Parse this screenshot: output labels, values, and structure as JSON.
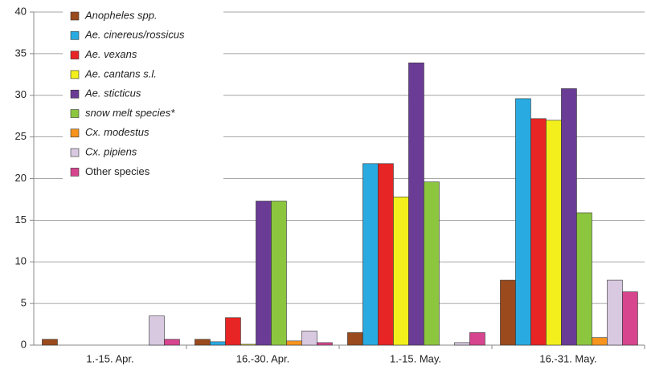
{
  "chart_data": {
    "type": "bar",
    "categories": [
      "1.-15. Apr.",
      "16.-30. Apr.",
      "1.-15. May.",
      "16.-31. May."
    ],
    "series": [
      {
        "name": "Anopheles spp.",
        "color": "#9a4a1c",
        "italic": true,
        "values": [
          0.7,
          0.7,
          1.5,
          7.8
        ]
      },
      {
        "name": "Ae. cinereus/rossicus",
        "color": "#29abe2",
        "italic": true,
        "values": [
          0,
          0.4,
          21.8,
          29.6
        ]
      },
      {
        "name": "Ae. vexans",
        "color": "#e82525",
        "italic": true,
        "values": [
          0,
          3.3,
          21.8,
          27.2
        ]
      },
      {
        "name": "Ae. cantans s.l.",
        "color": "#f2ef1c",
        "italic": true,
        "values": [
          0,
          0.1,
          17.8,
          27.0
        ]
      },
      {
        "name": "Ae. sticticus",
        "color": "#6b3c96",
        "italic": true,
        "values": [
          0,
          17.3,
          33.9,
          30.8
        ]
      },
      {
        "name": "snow melt species*",
        "color": "#8cc63f",
        "italic": true,
        "values": [
          0,
          17.3,
          19.6,
          15.9
        ]
      },
      {
        "name": "Cx. modestus",
        "color": "#f7941d",
        "italic": true,
        "values": [
          0,
          0.5,
          0,
          0.9
        ]
      },
      {
        "name": "Cx. pipiens",
        "color": "#d8c8e0",
        "italic": true,
        "values": [
          3.5,
          1.7,
          0.3,
          7.8
        ]
      },
      {
        "name": "Other species",
        "color": "#d6458e",
        "italic": false,
        "values": [
          0.7,
          0.3,
          1.5,
          6.4
        ]
      }
    ],
    "ylim": [
      0,
      40
    ],
    "yticks": [
      0,
      5,
      10,
      15,
      20,
      25,
      30,
      35,
      40
    ],
    "grid": true
  }
}
